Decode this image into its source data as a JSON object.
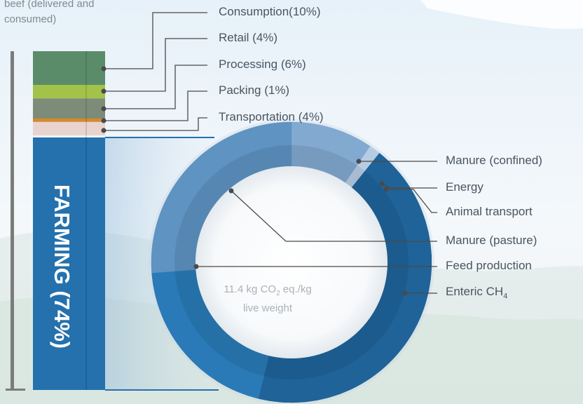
{
  "header_note": {
    "line1": "beef (delivered and",
    "line2": "consumed)"
  },
  "colors": {
    "farming": "#2471ad",
    "consumption": "#5b8c6a",
    "retail": "#a3c24a",
    "processing": "#7d8c78",
    "packing": "#d48a2c",
    "transportation": "#e9d3ce",
    "ring_dark": "#1f6399",
    "ring_mid": "#2a7ab7",
    "ring_light": "#5e93c2",
    "ring_lighter": "#82a9d0",
    "ring_pale": "#b6cce3",
    "leader": "#4a4a4a"
  },
  "chart_data": [
    {
      "type": "bar",
      "stacked": true,
      "series": [
        {
          "name": "FARMING (74%)",
          "value": 74
        },
        {
          "name": "Transportation (4%)",
          "value": 4
        },
        {
          "name": "Packing (1%)",
          "value": 1
        },
        {
          "name": "Processing (6%)",
          "value": 6
        },
        {
          "name": "Retail (4%)",
          "value": 4
        },
        {
          "name": "Consumption(10%)",
          "value": 10
        }
      ],
      "labels": {
        "farming": "FARMING (74%)",
        "consumption": "Consumption(10%)",
        "retail": "Retail (4%)",
        "processing": "Processing (6%)",
        "packing": "Packing (1%)",
        "transportation": "Transportation (4%)"
      }
    },
    {
      "type": "pie",
      "donut": true,
      "center_text": {
        "line1_pre": "11.4 kg CO",
        "line1_sub": "2",
        "line1_post": " eq./kg",
        "line2": "live weight"
      },
      "labels": {
        "manure_confined": "Manure (confined)",
        "energy": "Energy",
        "animal_transport": "Animal transport",
        "manure_pasture": "Manure (pasture)",
        "feed_production": "Feed production",
        "enteric_pre": "Enteric CH",
        "enteric_sub": "4"
      },
      "slices": [
        {
          "name": "Manure (confined)",
          "fraction": 0.095
        },
        {
          "name": "Energy",
          "fraction": 0.005
        },
        {
          "name": "Animal transport",
          "fraction": 0.008
        },
        {
          "name": "Enteric CH4",
          "fraction": 0.43
        },
        {
          "name": "Feed production",
          "fraction": 0.2
        },
        {
          "name": "Manure (pasture)",
          "fraction": 0.262
        }
      ]
    }
  ]
}
